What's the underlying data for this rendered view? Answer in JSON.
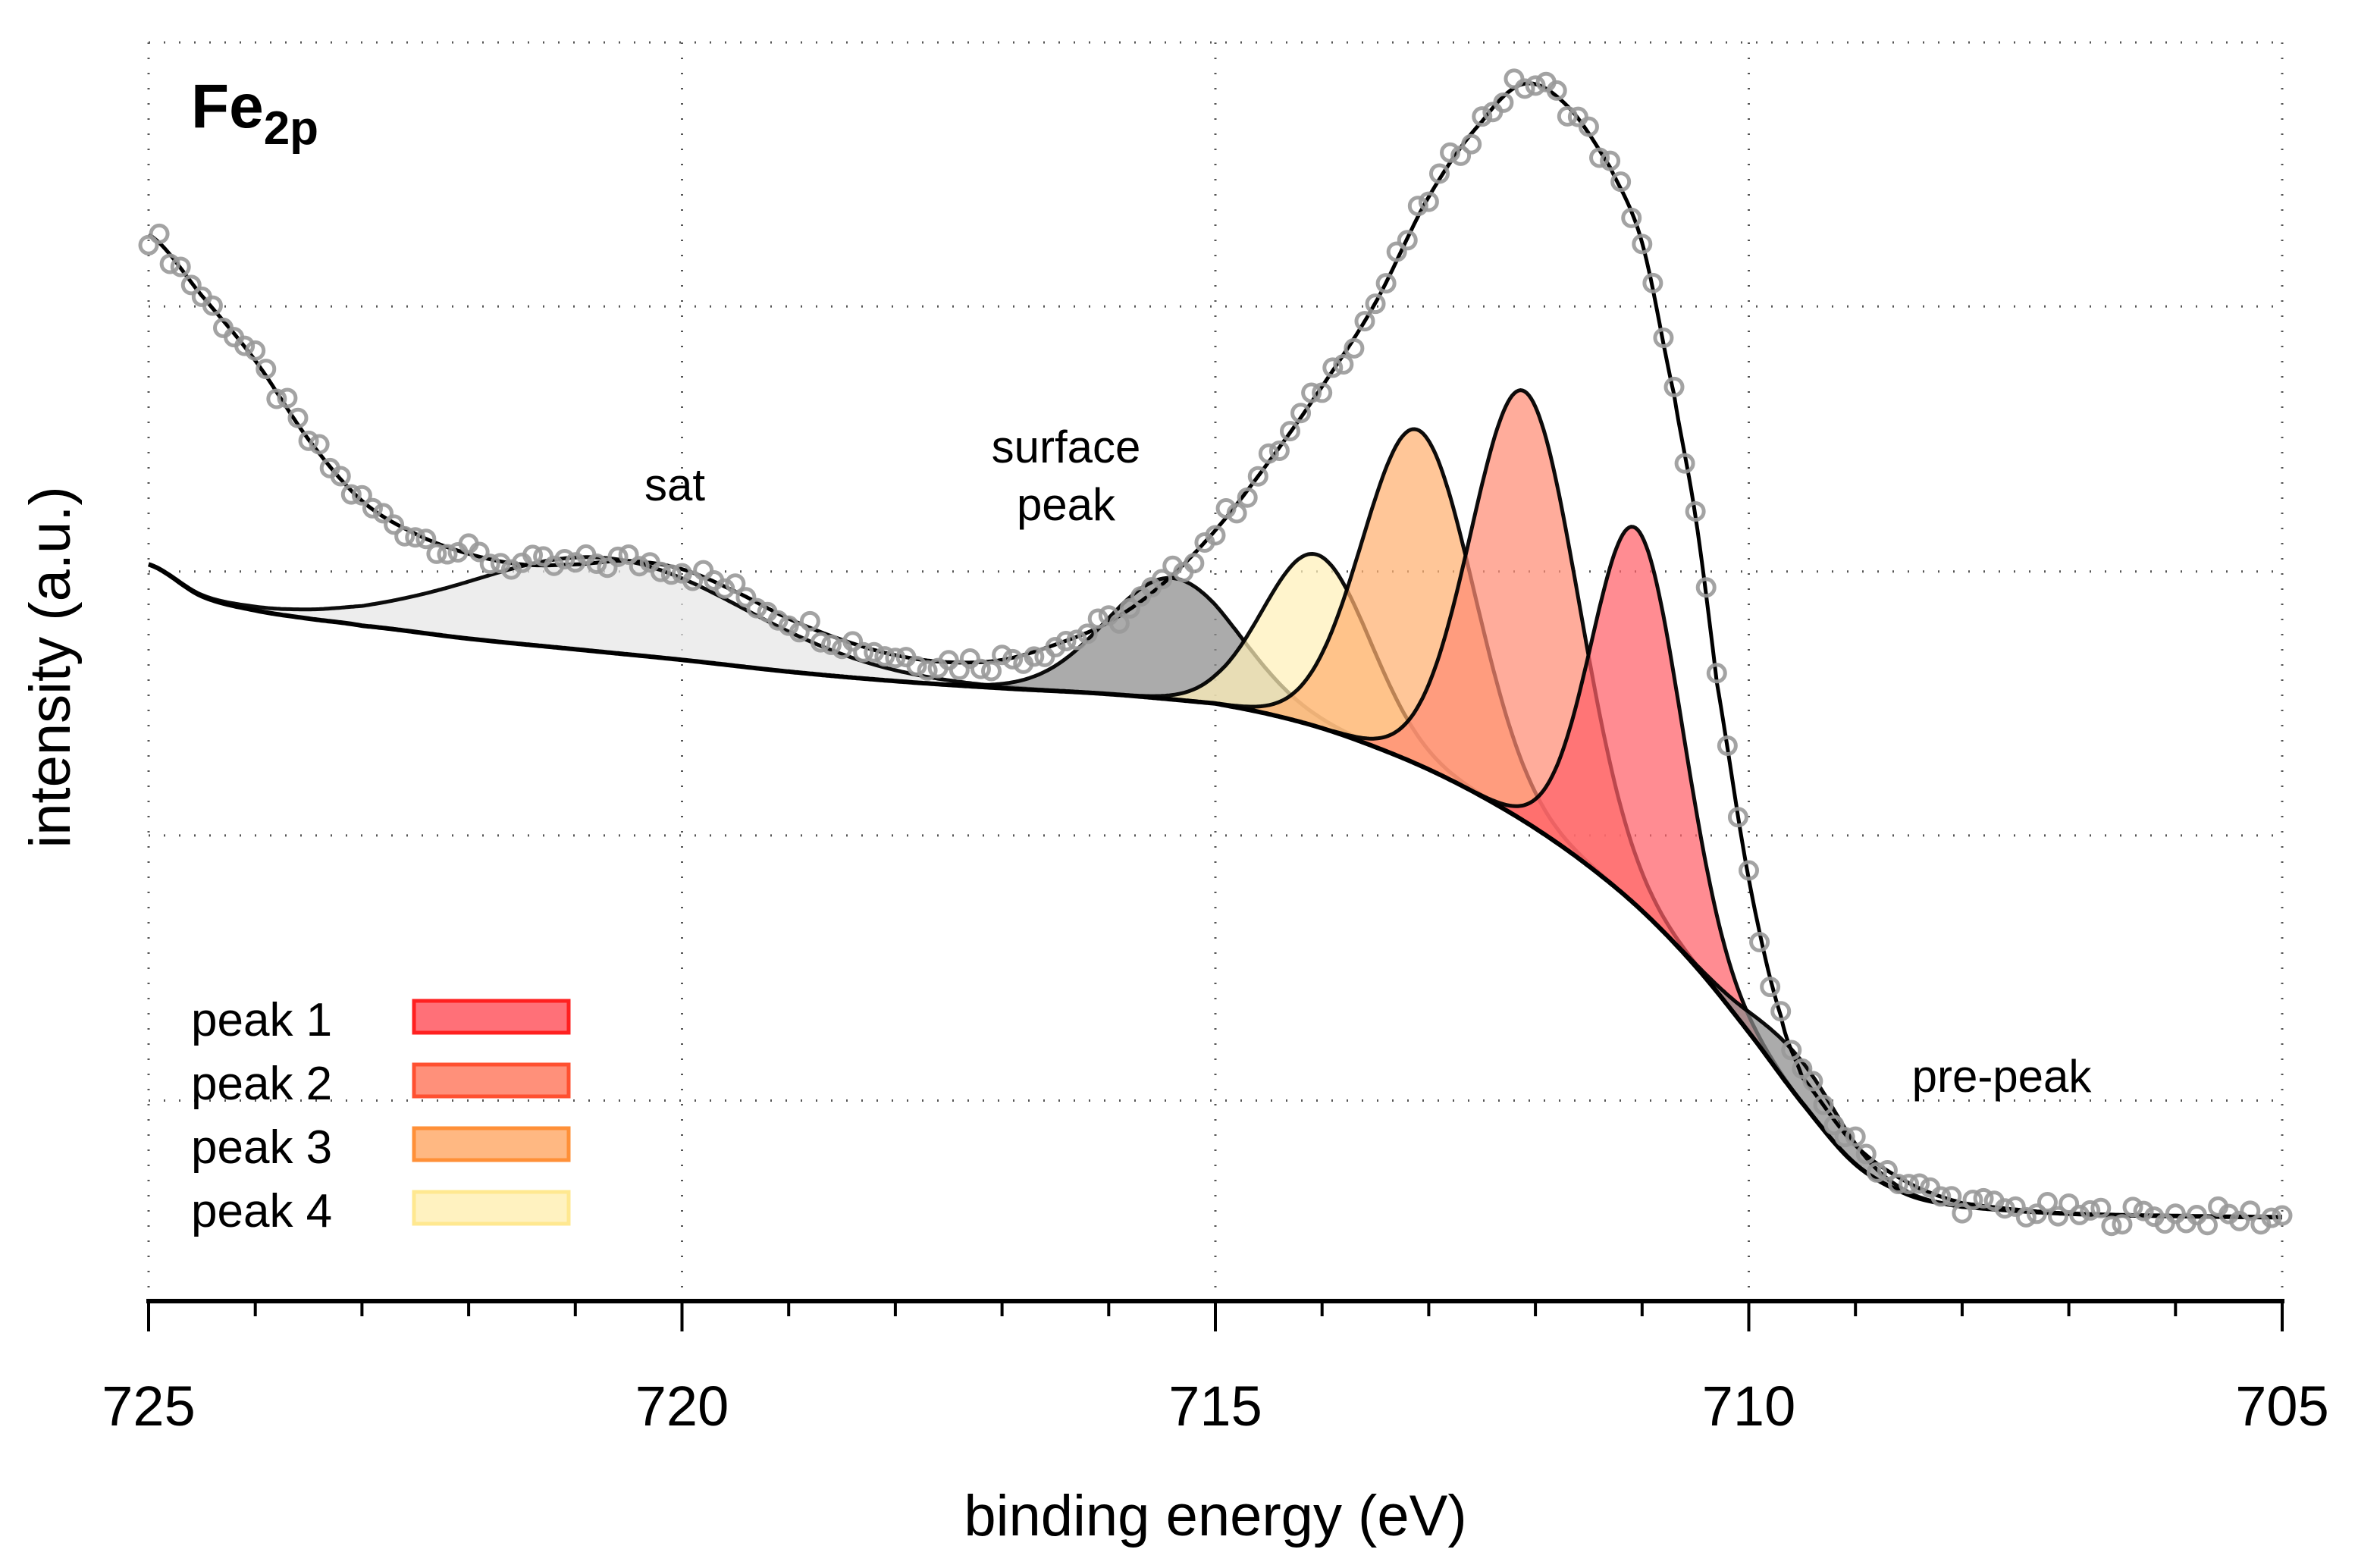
{
  "chart_data": {
    "type": "line",
    "title": "Fe",
    "title_subscript": "2p",
    "xlabel": "binding energy (eV)",
    "ylabel": "intensity (a.u.)",
    "xlim": [
      725,
      705
    ],
    "ylim": [
      -6.8,
      100
    ],
    "x_ticks": [
      725,
      720,
      715,
      710,
      705
    ],
    "x_tick_labels": [
      "725",
      "720",
      "715",
      "710",
      "705"
    ],
    "x_minor_step": 1,
    "y_gridlines": [
      10.2,
      32.7,
      55.1,
      77.6,
      100
    ],
    "grid": true,
    "annotations": [
      {
        "lines": [
          "sat"
        ],
        "x": 720.1
      },
      {
        "lines": [
          "surface",
          "peak"
        ],
        "x": 716.4
      },
      {
        "lines": [
          "pre-peak"
        ],
        "x": 708.1
      }
    ],
    "background": {
      "x": [
        725,
        724.5,
        724,
        723.5,
        723,
        722,
        721,
        720,
        719,
        718,
        717,
        716,
        715,
        714.5,
        714,
        713.5,
        713,
        712.5,
        712,
        711.5,
        711,
        710.5,
        710,
        709.5,
        709,
        708.5,
        708,
        707,
        706,
        705
      ],
      "y": [
        55.7,
        53.0,
        51.8,
        51.1,
        50.5,
        49.4,
        48.5,
        47.6,
        46.6,
        45.8,
        45.2,
        44.7,
        43.9,
        43.0,
        41.8,
        40.2,
        38.3,
        36.0,
        33.3,
        30.1,
        26.3,
        21.6,
        16.0,
        10.0,
        4.8,
        2.2,
        1.2,
        0.6,
        0.4,
        0.3
      ]
    },
    "components": [
      {
        "name": "sat",
        "center": 720.7,
        "height": 8.0,
        "sigma": 1.3,
        "color": "#e6e6e6",
        "legend": false
      },
      {
        "name": "surface peak",
        "center": 715.4,
        "height": 10.3,
        "sigma": 0.62,
        "color": "#8a8a8a",
        "legend": false
      },
      {
        "name": "peak 4",
        "center": 714.05,
        "height": 14.6,
        "sigma": 0.5,
        "color": "#fff0b8",
        "legend": true
      },
      {
        "name": "peak 3",
        "center": 713.1,
        "height": 28.4,
        "sigma": 0.52,
        "color": "#ffb070",
        "legend": true
      },
      {
        "name": "peak 2",
        "center": 712.1,
        "height": 36.5,
        "sigma": 0.5,
        "color": "#ff8c74",
        "legend": true
      },
      {
        "name": "peak 1",
        "center": 711.05,
        "height": 32.0,
        "sigma": 0.42,
        "color": "#ff5f68",
        "legend": true
      },
      {
        "name": "pre-peak",
        "center": 709.5,
        "height": 3.5,
        "sigma": 0.42,
        "color": "#8a8a8a",
        "legend": false
      }
    ],
    "legend": {
      "placement": "bottom-left",
      "entries": [
        {
          "label": "peak 1",
          "fill": "#ff7078",
          "stroke": "#ff2020"
        },
        {
          "label": "peak 2",
          "fill": "#ff907a",
          "stroke": "#ff5030"
        },
        {
          "label": "peak 3",
          "fill": "#ffb882",
          "stroke": "#ff9038"
        },
        {
          "label": "peak 4",
          "fill": "#fff2c0",
          "stroke": "#ffe890"
        }
      ]
    },
    "envelope": {
      "x": [
        725,
        724.5,
        724,
        723.5,
        723,
        722.5,
        722,
        721.5,
        721,
        720.5,
        720,
        719.5,
        719,
        718.5,
        718,
        717.5,
        717,
        716.5,
        716,
        715.5,
        715,
        714.5,
        714,
        713.5,
        713,
        712.5,
        712.1,
        711.7,
        711.3,
        711,
        710.7,
        710.5,
        710.3,
        710,
        709.7,
        709.5,
        709,
        708.5,
        708,
        707,
        706,
        705
      ],
      "y": [
        83.7,
        78.5,
        73,
        66.3,
        61.1,
        58.3,
        56.6,
        55.7,
        55.7,
        56,
        55.3,
        53.4,
        51.1,
        49.3,
        48,
        47.4,
        47.6,
        48.9,
        50.8,
        54,
        58.6,
        64.4,
        70.8,
        77.9,
        86.9,
        93.3,
        96.5,
        94.6,
        89.4,
        83,
        70.1,
        59.8,
        45.7,
        29,
        17.4,
        12.2,
        6.4,
        3.2,
        1.5,
        0.6,
        0.4,
        0.3
      ]
    },
    "measured": {
      "step": 0.1,
      "noise": 0.9,
      "marker": "open-circle",
      "color": "#999999"
    }
  }
}
